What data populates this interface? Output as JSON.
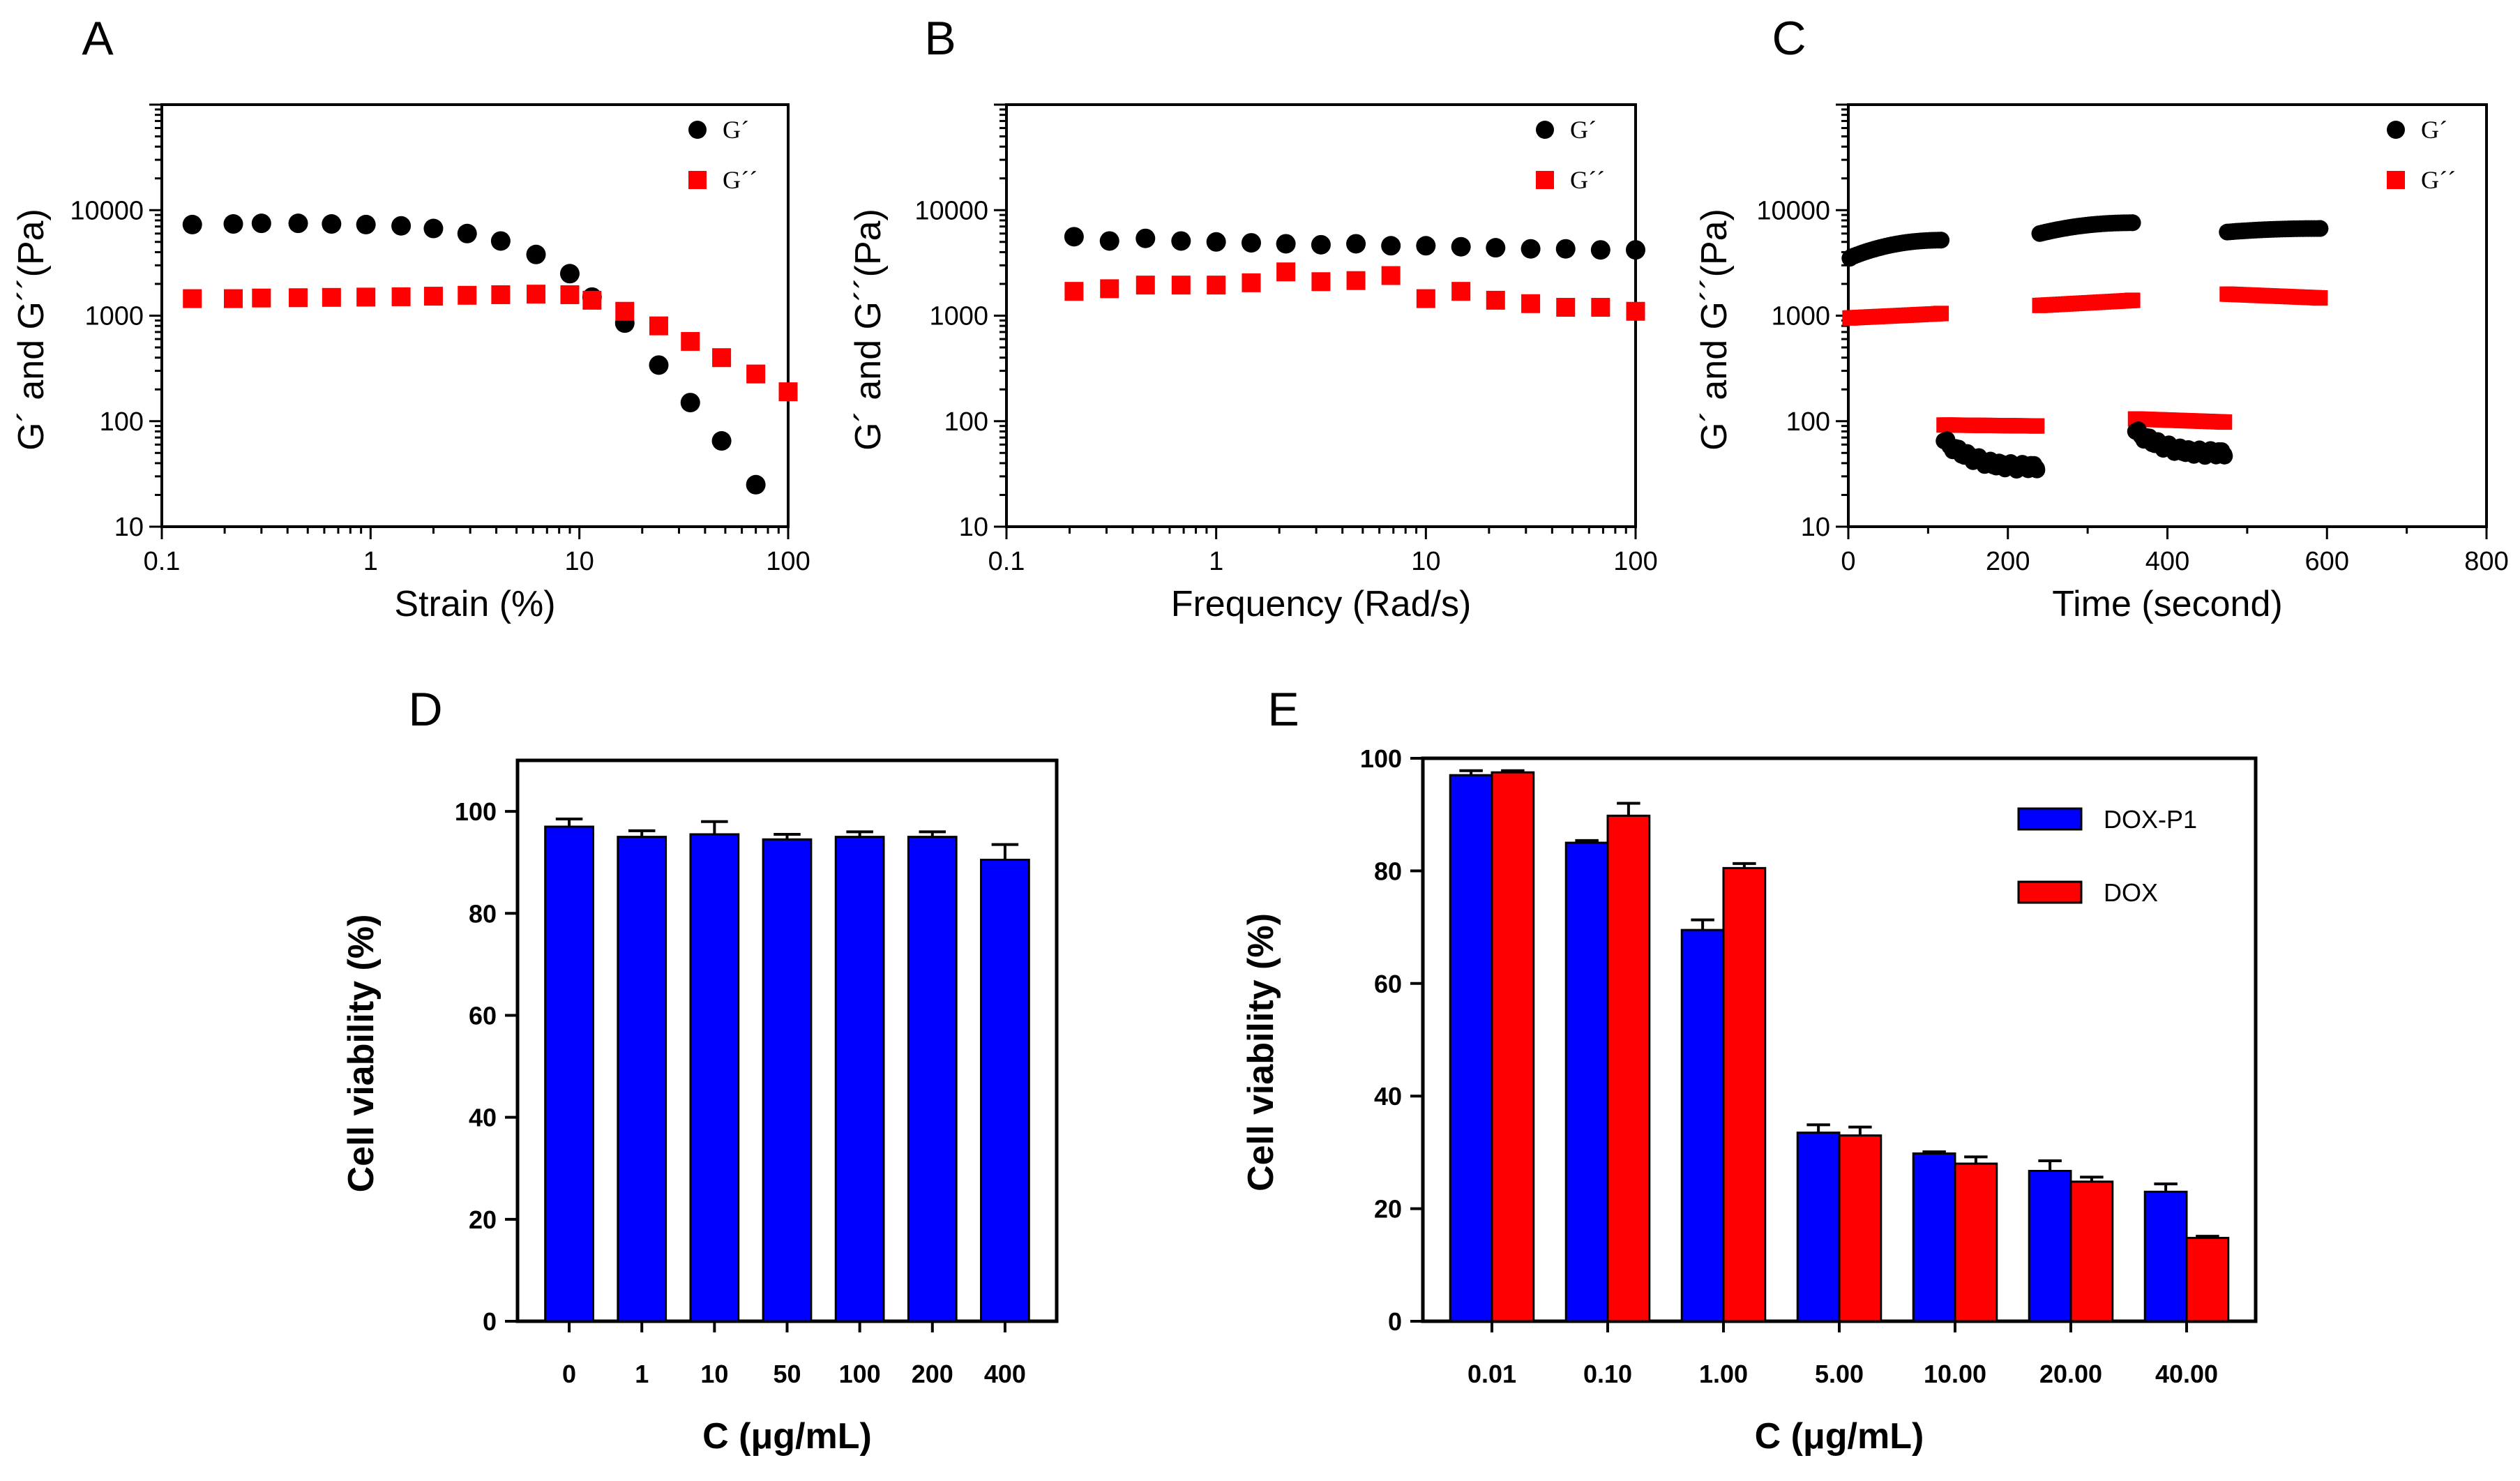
{
  "chart_data": [
    {
      "id": "A",
      "panel_label": "A",
      "type": "scatter",
      "xscale": "log",
      "yscale": "log",
      "xlabel": "Strain (%)",
      "ylabel": "G´ and G´´(Pa)",
      "xlim": [
        0.1,
        100
      ],
      "ylim": [
        10,
        100000
      ],
      "xticks": [
        0.1,
        1,
        10,
        100
      ],
      "xtick_labels": [
        "0.1",
        "1",
        "10",
        "100"
      ],
      "yticks": [
        10,
        100,
        1000,
        10000
      ],
      "ytick_labels": [
        "10",
        "100",
        "1000",
        "10000"
      ],
      "legend_position": "top-right",
      "series": [
        {
          "name": "G´",
          "marker": "circle",
          "color": "#000000",
          "x": [
            0.14,
            0.22,
            0.3,
            0.45,
            0.65,
            0.95,
            1.4,
            2.0,
            2.9,
            4.2,
            6.2,
            9.0,
            11.5,
            16.5,
            24,
            34,
            48,
            70
          ],
          "y": [
            7300,
            7400,
            7500,
            7500,
            7400,
            7300,
            7100,
            6700,
            6000,
            5100,
            3800,
            2500,
            1500,
            850,
            340,
            150,
            65,
            25
          ]
        },
        {
          "name": "G´´",
          "marker": "square",
          "color": "#ff0000",
          "x": [
            0.14,
            0.22,
            0.3,
            0.45,
            0.65,
            0.95,
            1.4,
            2.0,
            2.9,
            4.2,
            6.2,
            9.0,
            11.5,
            16.5,
            24,
            34,
            48,
            70,
            100
          ],
          "y": [
            1450,
            1450,
            1470,
            1480,
            1490,
            1500,
            1510,
            1530,
            1560,
            1580,
            1600,
            1580,
            1400,
            1100,
            800,
            570,
            400,
            280,
            190
          ]
        }
      ]
    },
    {
      "id": "B",
      "panel_label": "B",
      "type": "scatter",
      "xscale": "log",
      "yscale": "log",
      "xlabel": "Frequency (Rad/s)",
      "ylabel": "G´ and G´´(Pa)",
      "xlim": [
        0.1,
        100
      ],
      "ylim": [
        10,
        100000
      ],
      "xticks": [
        0.1,
        1,
        10,
        100
      ],
      "xtick_labels": [
        "0.1",
        "1",
        "10",
        "100"
      ],
      "yticks": [
        10,
        100,
        1000,
        10000
      ],
      "ytick_labels": [
        "10",
        "100",
        "1000",
        "10000"
      ],
      "legend_position": "top-right",
      "series": [
        {
          "name": "G´",
          "marker": "circle",
          "color": "#000000",
          "x": [
            0.21,
            0.31,
            0.46,
            0.68,
            1.0,
            1.47,
            2.15,
            3.16,
            4.64,
            6.81,
            10,
            14.7,
            21.5,
            31.6,
            46.4,
            68.1,
            100
          ],
          "y": [
            5600,
            5100,
            5400,
            5100,
            5000,
            4900,
            4800,
            4700,
            4800,
            4600,
            4600,
            4500,
            4400,
            4300,
            4300,
            4200,
            4200
          ]
        },
        {
          "name": "G´´",
          "marker": "square",
          "color": "#ff0000",
          "x": [
            0.21,
            0.31,
            0.46,
            0.68,
            1.0,
            1.47,
            2.15,
            3.16,
            4.64,
            6.81,
            10,
            14.7,
            21.5,
            31.6,
            46.4,
            68.1,
            100
          ],
          "y": [
            1700,
            1800,
            1950,
            1950,
            1950,
            2050,
            2600,
            2100,
            2150,
            2400,
            1450,
            1700,
            1400,
            1300,
            1200,
            1200,
            1100
          ]
        }
      ]
    },
    {
      "id": "C",
      "panel_label": "C",
      "type": "scatter",
      "xscale": "linear",
      "yscale": "log",
      "xlabel": "Time (second)",
      "ylabel": "G´ and G´´(Pa)",
      "xlim": [
        0,
        800
      ],
      "ylim": [
        10,
        100000
      ],
      "xticks": [
        0,
        200,
        400,
        600,
        800
      ],
      "xtick_labels": [
        "0",
        "200",
        "400",
        "600",
        "800"
      ],
      "yticks": [
        10,
        100,
        1000,
        10000
      ],
      "ytick_labels": [
        "10",
        "100",
        "1000",
        "10000"
      ],
      "legend_position": "top-right",
      "segments": [
        {
          "series": "G´",
          "x_start": 0,
          "x_end": 120,
          "y_start": 3500,
          "y_end": 5200,
          "shape": "rise"
        },
        {
          "series": "G´´",
          "x_start": 0,
          "x_end": 120,
          "y_start": 950,
          "y_end": 1050,
          "shape": "flat"
        },
        {
          "series": "G´´",
          "x_start": 120,
          "x_end": 240,
          "y_start": 92,
          "y_end": 90,
          "shape": "flat"
        },
        {
          "series": "G´",
          "x_start": 120,
          "x_end": 240,
          "y_start": 65,
          "y_end": 37,
          "shape": "decay"
        },
        {
          "series": "G´",
          "x_start": 240,
          "x_end": 360,
          "y_start": 6000,
          "y_end": 7600,
          "shape": "rise"
        },
        {
          "series": "G´´",
          "x_start": 240,
          "x_end": 360,
          "y_start": 1250,
          "y_end": 1400,
          "shape": "flat"
        },
        {
          "series": "G´´",
          "x_start": 360,
          "x_end": 475,
          "y_start": 105,
          "y_end": 98,
          "shape": "flat"
        },
        {
          "series": "G´",
          "x_start": 360,
          "x_end": 475,
          "y_start": 80,
          "y_end": 50,
          "shape": "decay"
        },
        {
          "series": "G´",
          "x_start": 475,
          "x_end": 595,
          "y_start": 6200,
          "y_end": 6700,
          "shape": "rise"
        },
        {
          "series": "G´´",
          "x_start": 475,
          "x_end": 595,
          "y_start": 1600,
          "y_end": 1470,
          "shape": "flat"
        }
      ],
      "series": [
        {
          "name": "G´",
          "marker": "circle",
          "color": "#000000"
        },
        {
          "name": "G´´",
          "marker": "square",
          "color": "#ff0000"
        }
      ]
    },
    {
      "id": "D",
      "panel_label": "D",
      "type": "bar",
      "xlabel": "C (μg/mL)",
      "ylabel": "Cell viability (%)",
      "ylim": [
        0,
        110
      ],
      "yticks": [
        0,
        20,
        40,
        60,
        80,
        100
      ],
      "categories": [
        "0",
        "1",
        "10",
        "50",
        "100",
        "200",
        "400"
      ],
      "series": [
        {
          "name": "Cell viability",
          "color": "#0000ff",
          "values": [
            97,
            95,
            95.5,
            94.5,
            95,
            95,
            90.5
          ],
          "errors": [
            1.5,
            1.2,
            2.5,
            1.0,
            1.0,
            1.0,
            3.0
          ]
        }
      ]
    },
    {
      "id": "E",
      "panel_label": "E",
      "type": "bar",
      "xlabel": "C (μg/mL)",
      "ylabel": "Cell viability (%)",
      "ylim": [
        0,
        100
      ],
      "yticks": [
        0,
        20,
        40,
        60,
        80,
        100
      ],
      "categories": [
        "0.01",
        "0.10",
        "1.00",
        "5.00",
        "10.00",
        "20.00",
        "40.00"
      ],
      "legend_position": "top-right",
      "series": [
        {
          "name": "DOX-P1",
          "color": "#0000ff",
          "values": [
            97,
            85,
            69.5,
            33.5,
            29.8,
            26.7,
            23
          ],
          "errors": [
            0.8,
            0.4,
            1.8,
            1.4,
            0.3,
            1.8,
            1.4
          ]
        },
        {
          "name": "DOX",
          "color": "#ff0000",
          "values": [
            97.5,
            89.8,
            80.5,
            33,
            28,
            24.8,
            14.8
          ],
          "errors": [
            0.3,
            2.2,
            0.8,
            1.5,
            1.2,
            0.8,
            0.3
          ]
        }
      ]
    }
  ]
}
